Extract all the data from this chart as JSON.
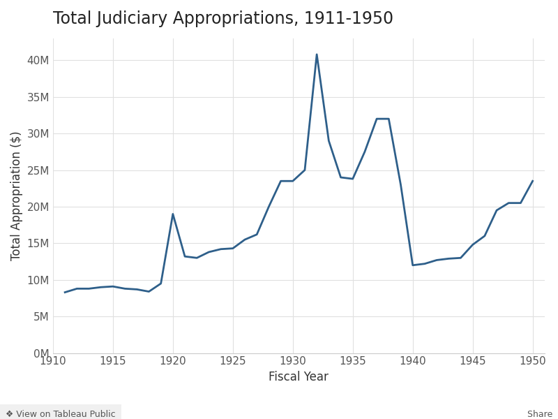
{
  "title": "Total Judiciary Appropriations, 1911-1950",
  "xlabel": "Fiscal Year",
  "ylabel": "Total Appropriation ($)",
  "line_color": "#2e5f8a",
  "background_color": "#ffffff",
  "plot_background": "#ffffff",
  "grid_color": "#e0e0e0",
  "years": [
    1911,
    1912,
    1913,
    1914,
    1915,
    1916,
    1917,
    1918,
    1919,
    1920,
    1921,
    1922,
    1923,
    1924,
    1925,
    1926,
    1927,
    1928,
    1929,
    1930,
    1931,
    1932,
    1933,
    1934,
    1935,
    1936,
    1937,
    1938,
    1939,
    1940,
    1941,
    1942,
    1943,
    1944,
    1945,
    1946,
    1947,
    1948,
    1949,
    1950
  ],
  "values": [
    8300000,
    8800000,
    8800000,
    9000000,
    9100000,
    8800000,
    8700000,
    8400000,
    9500000,
    19000000,
    13200000,
    13000000,
    13800000,
    14200000,
    14300000,
    15500000,
    16200000,
    20000000,
    23500000,
    23500000,
    25000000,
    40800000,
    29000000,
    24000000,
    23800000,
    27500000,
    32000000,
    32000000,
    23000000,
    12000000,
    12200000,
    12700000,
    12900000,
    13000000,
    14800000,
    16000000,
    19500000,
    20500000,
    20500000,
    23500000
  ],
  "xlim": [
    1910,
    1951
  ],
  "ylim": [
    0,
    43000000
  ],
  "xticks": [
    1910,
    1915,
    1920,
    1925,
    1930,
    1935,
    1940,
    1945,
    1950
  ],
  "yticks": [
    0,
    5000000,
    10000000,
    15000000,
    20000000,
    25000000,
    30000000,
    35000000,
    40000000
  ],
  "ytick_labels": [
    "0M",
    "5M",
    "10M",
    "15M",
    "20M",
    "25M",
    "30M",
    "35M",
    "40M"
  ],
  "line_width": 2.0,
  "title_fontsize": 17,
  "axis_label_fontsize": 12,
  "tick_fontsize": 11
}
